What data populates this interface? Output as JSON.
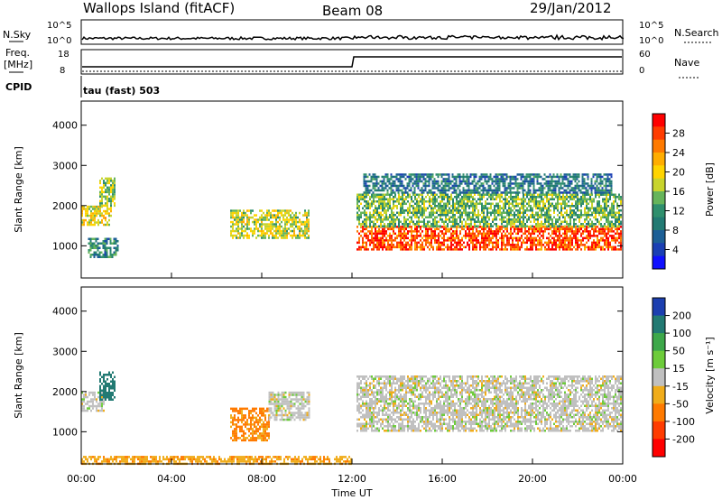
{
  "header": {
    "site": "Wallops Island (fitACF)",
    "beam": "Beam 08",
    "date": "29/Jan/2012"
  },
  "top_panels": {
    "nsky_label": "N.Sky",
    "nsearch_label": "N.Search",
    "nsky_ticks": [
      "10^5",
      "10^0"
    ],
    "nsearch_ticks": [
      "10^5",
      "10^0"
    ],
    "freq_label_1": "Freq.",
    "freq_label_2": "[MHz]",
    "freq_ticks": [
      "18",
      "8"
    ],
    "nave_label": "Nave",
    "nave_ticks": [
      "60",
      "0"
    ],
    "cpid_label": "CPID",
    "cpid_text": "tau (fast) 503"
  },
  "colorbars": {
    "power": {
      "label": "Power [dB]",
      "ticks": [
        "28",
        "24",
        "20",
        "16",
        "12",
        "8",
        "4"
      ],
      "colors": [
        "#ff0000",
        "#ff3c00",
        "#ff7a00",
        "#ffad00",
        "#ffd400",
        "#c8d42d",
        "#66b45a",
        "#2f8f6d",
        "#227a73",
        "#1c5f96",
        "#1a3fb4",
        "#1010ff"
      ]
    },
    "velocity": {
      "label": "Velocity [m s⁻¹]",
      "ticks": [
        "200",
        "100",
        "50",
        "15",
        "-15",
        "-50",
        "-100",
        "-200"
      ],
      "colors": [
        "#1c3fb0",
        "#227a73",
        "#3da84a",
        "#6dcc3a",
        "#c0c0c0",
        "#f0ac1a",
        "#ff7a00",
        "#ff3c00",
        "#ff0000"
      ]
    }
  },
  "chart_data": [
    {
      "type": "heatmap",
      "name": "Power",
      "ylabel": "Slant Range [km]",
      "yticks": [
        "1000",
        "2000",
        "3000",
        "4000"
      ],
      "ylim": [
        200,
        4600
      ],
      "xlim": [
        0,
        24
      ],
      "colorbar_label": "Power [dB]",
      "regions": [
        {
          "t0": 0.0,
          "t1": 1.3,
          "r0": 1500,
          "r1": 2000,
          "level": 0.6
        },
        {
          "t0": 0.3,
          "t1": 1.6,
          "r0": 700,
          "r1": 1200,
          "level": 0.3
        },
        {
          "t0": 0.8,
          "t1": 1.5,
          "r0": 2000,
          "r1": 2700,
          "level": 0.5
        },
        {
          "t0": 6.6,
          "t1": 10.1,
          "r0": 1200,
          "r1": 1900,
          "level": 0.55
        },
        {
          "t0": 12.2,
          "t1": 23.9,
          "r0": 900,
          "r1": 1500,
          "level": 0.9
        },
        {
          "t0": 12.2,
          "t1": 23.9,
          "r0": 1500,
          "r1": 2300,
          "level": 0.45
        },
        {
          "t0": 12.5,
          "t1": 23.5,
          "r0": 2300,
          "r1": 2800,
          "level": 0.25
        }
      ]
    },
    {
      "type": "heatmap",
      "name": "Velocity",
      "xlabel": "Time UT",
      "ylabel": "Slant Range [km]",
      "yticks": [
        "1000",
        "2000",
        "3000",
        "4000"
      ],
      "xticks": [
        "00:00",
        "04:00",
        "08:00",
        "12:00",
        "16:00",
        "20:00",
        "00:00"
      ],
      "ylim": [
        200,
        4600
      ],
      "xlim": [
        0,
        24
      ],
      "colorbar_label": "Velocity [m s⁻¹]",
      "regions": [
        {
          "t0": 0.0,
          "t1": 1.0,
          "r0": 1500,
          "r1": 2000,
          "vel": 0
        },
        {
          "t0": 0.8,
          "t1": 1.5,
          "r0": 1800,
          "r1": 2500,
          "vel": 150
        },
        {
          "t0": 6.6,
          "t1": 8.3,
          "r0": 800,
          "r1": 1600,
          "vel": -60
        },
        {
          "t0": 8.3,
          "t1": 10.1,
          "r0": 1300,
          "r1": 2000,
          "vel": 0
        },
        {
          "t0": 12.2,
          "t1": 23.9,
          "r0": 1000,
          "r1": 2400,
          "vel": 0
        },
        {
          "t0": 0.0,
          "t1": 12.0,
          "r0": 200,
          "r1": 400,
          "vel": -40
        }
      ]
    }
  ]
}
